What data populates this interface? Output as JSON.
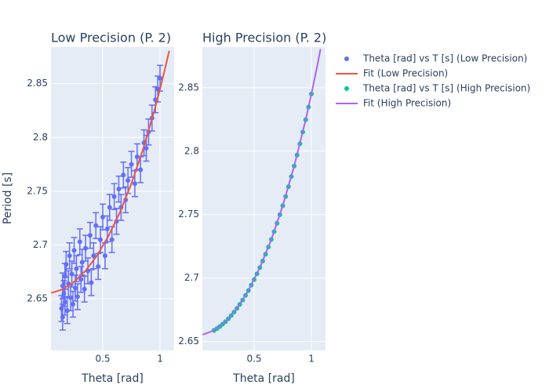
{
  "chart_data": [
    {
      "type": "scatter",
      "title": "Low Precision (P. 2)",
      "xlabel": "Theta [rad]",
      "ylabel": "Period [s]",
      "xlim": [
        0.048,
        1.123
      ],
      "ylim": [
        2.602,
        2.884
      ],
      "xticks": [
        0.5,
        1
      ],
      "yticks": [
        2.65,
        2.7,
        2.75,
        2.8,
        2.85
      ],
      "grid": true,
      "series": [
        {
          "name": "Theta [rad] vs T [s] (Low Precision)",
          "color": "#636efa",
          "mode": "markers",
          "error": 0.012,
          "x": [
            0.14,
            0.15,
            0.15,
            0.16,
            0.17,
            0.17,
            0.18,
            0.19,
            0.2,
            0.21,
            0.22,
            0.23,
            0.24,
            0.25,
            0.26,
            0.27,
            0.28,
            0.3,
            0.31,
            0.32,
            0.34,
            0.35,
            0.37,
            0.39,
            0.4,
            0.42,
            0.44,
            0.46,
            0.48,
            0.5,
            0.52,
            0.54,
            0.56,
            0.58,
            0.6,
            0.62,
            0.64,
            0.66,
            0.68,
            0.7,
            0.72,
            0.75,
            0.78,
            0.8,
            0.83,
            0.86,
            0.88,
            0.9,
            0.93,
            0.96,
            0.98,
            1.0
          ],
          "values": [
            2.641,
            2.662,
            2.633,
            2.655,
            2.671,
            2.647,
            2.682,
            2.639,
            2.664,
            2.69,
            2.651,
            2.673,
            2.645,
            2.695,
            2.66,
            2.678,
            2.652,
            2.703,
            2.668,
            2.684,
            2.659,
            2.697,
            2.676,
            2.709,
            2.665,
            2.69,
            2.718,
            2.68,
            2.705,
            2.726,
            2.69,
            2.715,
            2.735,
            2.705,
            2.745,
            2.722,
            2.752,
            2.735,
            2.765,
            2.742,
            2.76,
            2.775,
            2.757,
            2.782,
            2.77,
            2.795,
            2.79,
            2.805,
            2.818,
            2.835,
            2.845,
            2.855
          ]
        },
        {
          "name": "Fit (Low Precision)",
          "color": "#ef553b",
          "mode": "lines",
          "x": [
            0.05,
            0.15,
            0.25,
            0.35,
            0.45,
            0.55,
            0.65,
            0.75,
            0.85,
            0.95,
            1.0,
            1.05,
            1.08
          ],
          "values": [
            2.6554,
            2.6588,
            2.6657,
            2.6761,
            2.6902,
            2.7083,
            2.7304,
            2.757,
            2.7883,
            2.8247,
            2.845,
            2.8667,
            2.8805
          ]
        }
      ]
    },
    {
      "type": "scatter",
      "title": "High Precision (P. 2)",
      "xlabel": "Theta [rad]",
      "xlim": [
        0.048,
        1.123
      ],
      "ylim": [
        2.643,
        2.882
      ],
      "xticks": [
        0.5,
        1
      ],
      "yticks": [
        2.65,
        2.7,
        2.75,
        2.8,
        2.85
      ],
      "grid": true,
      "series": [
        {
          "name": "Theta [rad] vs T [s] (High Precision)",
          "color": "#00cc96",
          "mode": "markers",
          "x": [
            0.15,
            0.175,
            0.2,
            0.225,
            0.25,
            0.275,
            0.3,
            0.325,
            0.35,
            0.375,
            0.4,
            0.425,
            0.45,
            0.475,
            0.5,
            0.525,
            0.55,
            0.575,
            0.6,
            0.625,
            0.65,
            0.675,
            0.7,
            0.725,
            0.75,
            0.775,
            0.8,
            0.825,
            0.85,
            0.875,
            0.9,
            0.925,
            0.95,
            0.975,
            1.0
          ],
          "values": [
            2.6588,
            2.6602,
            2.6618,
            2.6637,
            2.6657,
            2.668,
            2.6705,
            2.6732,
            2.6761,
            2.6793,
            2.6827,
            2.6864,
            2.6902,
            2.6944,
            2.6988,
            2.7034,
            2.7083,
            2.7134,
            2.7188,
            2.7245,
            2.7304,
            2.7366,
            2.7431,
            2.7499,
            2.757,
            2.7643,
            2.772,
            2.78,
            2.7883,
            2.7969,
            2.8058,
            2.8151,
            2.8247,
            2.8347,
            2.845
          ]
        },
        {
          "name": "Fit (High Precision)",
          "color": "#ab63fa",
          "mode": "lines",
          "x": [
            0.05,
            0.15,
            0.25,
            0.35,
            0.45,
            0.55,
            0.65,
            0.75,
            0.85,
            0.95,
            1.0,
            1.05,
            1.08
          ],
          "values": [
            2.6554,
            2.6588,
            2.6657,
            2.6761,
            2.6902,
            2.7083,
            2.7304,
            2.757,
            2.7883,
            2.8247,
            2.845,
            2.8667,
            2.8805
          ]
        }
      ]
    }
  ]
}
